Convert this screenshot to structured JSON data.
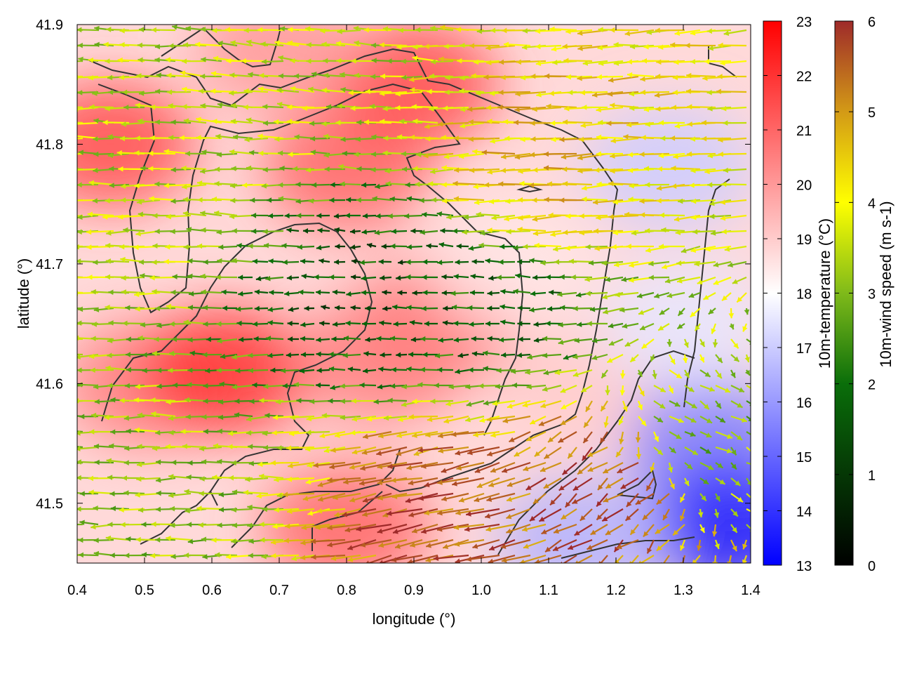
{
  "chart_data": {
    "type": "heatmap",
    "title": "",
    "xlabel": "longitude (°)",
    "ylabel": "latitude (°)",
    "xlim": [
      0.4,
      1.4
    ],
    "ylim": [
      41.45,
      41.9
    ],
    "x_ticks": [
      "0.4",
      "0.5",
      "0.6",
      "0.7",
      "0.8",
      "0.9",
      "1.0",
      "1.1",
      "1.2",
      "1.3",
      "1.4"
    ],
    "y_ticks": [
      "41.5",
      "41.6",
      "41.7",
      "41.8",
      "41.9"
    ],
    "grid": false,
    "temperature_scale": {
      "label": "10m-temperature (°C)",
      "range": [
        13,
        23
      ],
      "ticks": [
        "13",
        "14",
        "15",
        "16",
        "17",
        "18",
        "19",
        "20",
        "21",
        "22",
        "23"
      ],
      "colors": {
        "low": "#0000ff",
        "mid": "#ffffff",
        "high": "#ff0000"
      }
    },
    "wind_speed_scale": {
      "label": "10m-wind speed (m s-1)",
      "range": [
        0,
        6
      ],
      "ticks": [
        "0",
        "1",
        "2",
        "3",
        "4",
        "5",
        "6"
      ],
      "colors": {
        "0": "#000000",
        "2": "#0a6e0a",
        "3": "#7fba1a",
        "4": "#ffff00",
        "5": "#d39a16",
        "6": "#9e2a2a"
      }
    },
    "temperature_regions": [
      {
        "lon": 0.45,
        "lat": 41.8,
        "temp": 21.5
      },
      {
        "lon": 0.5,
        "lat": 41.6,
        "temp": 20.5
      },
      {
        "lon": 0.62,
        "lat": 41.61,
        "temp": 22.0
      },
      {
        "lon": 0.8,
        "lat": 41.78,
        "temp": 21.0
      },
      {
        "lon": 0.9,
        "lat": 41.85,
        "temp": 21.5
      },
      {
        "lon": 0.7,
        "lat": 41.88,
        "temp": 20.0
      },
      {
        "lon": 0.93,
        "lat": 41.65,
        "temp": 20.5
      },
      {
        "lon": 0.85,
        "lat": 41.62,
        "temp": 20.5
      },
      {
        "lon": 0.8,
        "lat": 41.48,
        "temp": 21.0
      },
      {
        "lon": 1.05,
        "lat": 41.7,
        "temp": 18.5
      },
      {
        "lon": 1.15,
        "lat": 41.6,
        "temp": 19.0
      },
      {
        "lon": 1.28,
        "lat": 41.78,
        "temp": 17.0
      },
      {
        "lon": 1.34,
        "lat": 41.55,
        "temp": 15.5
      },
      {
        "lon": 1.37,
        "lat": 41.48,
        "temp": 13.5
      },
      {
        "lon": 1.15,
        "lat": 41.47,
        "temp": 16.5
      },
      {
        "lon": 1.3,
        "lat": 41.65,
        "temp": 17.5
      }
    ],
    "wind_regions": [
      {
        "name_hint": "",
        "lon": 0.5,
        "lat": 41.75,
        "speed": 3.5,
        "dir_deg": 180
      },
      {
        "lon": 0.85,
        "lat": 41.68,
        "speed": 1.5,
        "dir_deg": 180
      },
      {
        "lon": 1.0,
        "lat": 41.66,
        "speed": 1.8,
        "dir_deg": 180
      },
      {
        "lon": 1.1,
        "lat": 41.78,
        "speed": 4.5,
        "dir_deg": 175
      },
      {
        "lon": 0.95,
        "lat": 41.5,
        "speed": 5.5,
        "dir_deg": 150
      },
      {
        "lon": 1.2,
        "lat": 41.52,
        "speed": 5.8,
        "dir_deg": 120
      },
      {
        "lon": 1.32,
        "lat": 41.55,
        "speed": 3.0,
        "dir_deg": 60
      },
      {
        "lon": 0.55,
        "lat": 41.5,
        "speed": 3.2,
        "dir_deg": 180
      },
      {
        "lon": 0.7,
        "lat": 41.85,
        "speed": 3.5,
        "dir_deg": 190
      }
    ]
  }
}
